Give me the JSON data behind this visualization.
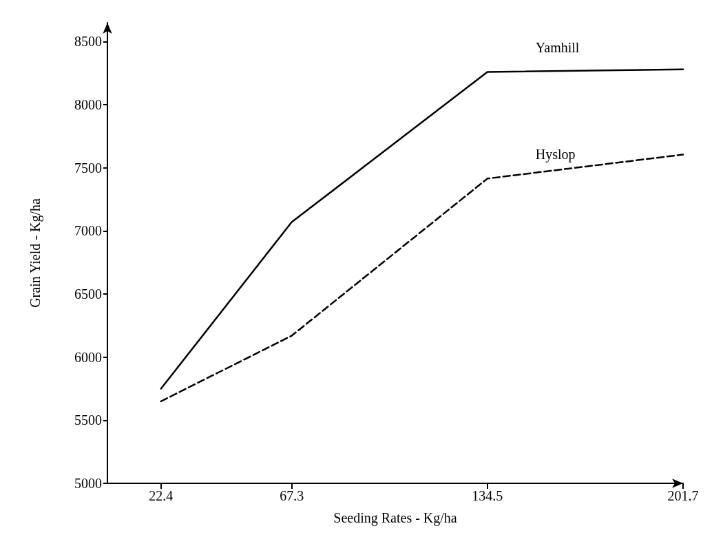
{
  "chart_data": {
    "type": "line",
    "xlabel": "Seeding Rates - Kg/ha",
    "ylabel": "Grain Yield - Kg/ha",
    "x": [
      22.4,
      67.3,
      134.5,
      201.7
    ],
    "series": [
      {
        "name": "Yamhill",
        "color": "#000000",
        "values": [
          5750,
          7070,
          8260,
          8280
        ],
        "line_style": "solid"
      },
      {
        "name": "Hyslop",
        "color": "#000000",
        "values": [
          5650,
          6170,
          7415,
          7605
        ],
        "line_style": "dashed"
      }
    ],
    "xlim": [
      4,
      201.7
    ],
    "xticks": [
      22.4,
      67.3,
      134.5,
      201.7
    ],
    "ylim": [
      5000,
      8650
    ],
    "yticks": [
      5000,
      5500,
      6000,
      6500,
      7000,
      7500,
      8000,
      8500
    ],
    "grid": false,
    "legend": false,
    "marker": "none"
  }
}
